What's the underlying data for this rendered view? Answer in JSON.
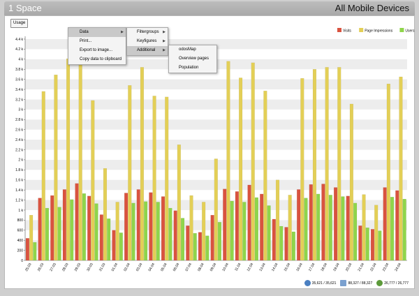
{
  "window": {
    "title": "1 Space",
    "right_title": "All Mobile Devices"
  },
  "toolbar": {
    "usage_label": "Usage"
  },
  "context_menu": {
    "main": [
      {
        "label": "Data",
        "submenu": true
      },
      {
        "label": "Print...",
        "submenu": false
      },
      {
        "label": "Export to image...",
        "submenu": false
      },
      {
        "label": "Copy data to clipboard",
        "submenu": false
      }
    ],
    "data_sub": [
      {
        "label": "Filtergroups",
        "submenu": true
      },
      {
        "label": "Keyfigures",
        "submenu": true
      },
      {
        "label": "Additional",
        "submenu": true
      }
    ],
    "additional_sub": [
      {
        "label": "odosMap"
      },
      {
        "label": "Overview pages"
      },
      {
        "label": "Population"
      }
    ]
  },
  "status": {
    "visits": "35,621 / 35,621",
    "impressions": "88,327 / 88,327",
    "users": "26,777 / 26,777"
  },
  "colors": {
    "visits": "#d9533f",
    "impressions": "#e3cf56",
    "users": "#8fd54b"
  },
  "chart_data": {
    "type": "bar",
    "title": "",
    "xlabel": "",
    "ylabel": "",
    "ylim": [
      0,
      4400
    ],
    "yticks": [
      {
        "v": 0,
        "label": "0"
      },
      {
        "v": 200,
        "label": "200"
      },
      {
        "v": 400,
        "label": "400"
      },
      {
        "v": 600,
        "label": "600"
      },
      {
        "v": 800,
        "label": "800"
      },
      {
        "v": 1000,
        "label": "1 k"
      },
      {
        "v": 1200,
        "label": "1.2 k"
      },
      {
        "v": 1400,
        "label": "1.4 k"
      },
      {
        "v": 1600,
        "label": "1.6 k"
      },
      {
        "v": 1800,
        "label": "1.8 k"
      },
      {
        "v": 2000,
        "label": "2 k"
      },
      {
        "v": 2200,
        "label": "2.2 k"
      },
      {
        "v": 2400,
        "label": "2.4 k"
      },
      {
        "v": 2600,
        "label": "2.6 k"
      },
      {
        "v": 2800,
        "label": "2.8 k"
      },
      {
        "v": 3000,
        "label": "3 k"
      },
      {
        "v": 3200,
        "label": "3.2 k"
      },
      {
        "v": 3400,
        "label": "3.4 k"
      },
      {
        "v": 3600,
        "label": "3.6 k"
      },
      {
        "v": 3800,
        "label": "3.8 k"
      },
      {
        "v": 4000,
        "label": "4 k"
      },
      {
        "v": 4200,
        "label": "4.2 k"
      },
      {
        "v": 4400,
        "label": "4.4 k"
      }
    ],
    "categories": [
      "25.03",
      "26.03",
      "27.03",
      "28.03",
      "29.03",
      "30.03",
      "31.03",
      "01.04",
      "02.04",
      "03.04",
      "04.04",
      "05.04",
      "06.04",
      "07.04",
      "08.04",
      "09.04",
      "10.04",
      "11.04",
      "12.04",
      "13.04",
      "14.04",
      "15.04",
      "16.04",
      "17.04",
      "18.04",
      "19.04",
      "20.04",
      "21.04",
      "22.04",
      "23.04",
      "24.04"
    ],
    "legend_position": "top-right",
    "grid": true,
    "series": [
      {
        "name": "Visits",
        "values": [
          440,
          1240,
          1290,
          1410,
          1530,
          1280,
          910,
          600,
          1340,
          1410,
          1350,
          1270,
          990,
          690,
          560,
          900,
          1420,
          1370,
          1500,
          1320,
          820,
          660,
          1410,
          1510,
          1520,
          1450,
          1280,
          690,
          620,
          1450,
          1390
        ]
      },
      {
        "name": "Page Impressions",
        "values": [
          900,
          3360,
          3690,
          4010,
          3950,
          3180,
          1830,
          1160,
          3480,
          3840,
          3270,
          3250,
          2300,
          1290,
          1160,
          2020,
          3960,
          3630,
          3930,
          3370,
          1600,
          1300,
          3620,
          3800,
          3840,
          3840,
          3110,
          1310,
          1100,
          3510,
          3650
        ]
      },
      {
        "name": "Users",
        "values": [
          360,
          1040,
          1060,
          1210,
          1330,
          1130,
          830,
          550,
          1140,
          1170,
          1160,
          1040,
          840,
          540,
          490,
          760,
          1180,
          1160,
          1250,
          1090,
          680,
          570,
          1240,
          1320,
          1300,
          1270,
          1140,
          650,
          590,
          1260,
          1220
        ]
      }
    ]
  }
}
